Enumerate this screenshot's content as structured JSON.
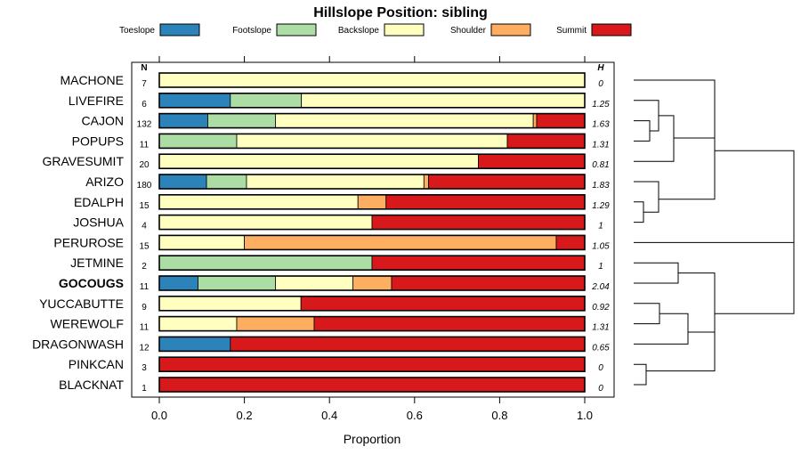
{
  "chart_data": {
    "type": "bar",
    "orientation": "horizontal",
    "stacked": true,
    "title": "Hillslope Position: sibling",
    "xlabel": "Proportion",
    "xlim": [
      0,
      1
    ],
    "x_ticks": [
      "0.0",
      "0.2",
      "0.4",
      "0.6",
      "0.8",
      "1.0"
    ],
    "legend_position": "top",
    "n_header": "N",
    "h_header": "H",
    "categories": [
      "MACHONE",
      "LIVEFIRE",
      "CAJON",
      "POPUPS",
      "GRAVESUMIT",
      "ARIZO",
      "EDALPH",
      "JOSHUA",
      "PERUROSE",
      "JETMINE",
      "GOCOUGS",
      "YUCCABUTTE",
      "WEREWOLF",
      "DRAGONWASH",
      "PINKCAN",
      "BLACKNAT"
    ],
    "bold_category": "GOCOUGS",
    "n": [
      "7",
      "6",
      "132",
      "11",
      "20",
      "180",
      "15",
      "4",
      "15",
      "2",
      "11",
      "9",
      "11",
      "12",
      "3",
      "1"
    ],
    "h": [
      "0",
      "1.25",
      "1.63",
      "1.31",
      "0.81",
      "1.83",
      "1.29",
      "1",
      "1.05",
      "1",
      "2.04",
      "0.92",
      "1.31",
      "0.65",
      "0",
      "0"
    ],
    "series": [
      {
        "name": "Toeslope",
        "color": "#2b83ba",
        "values": [
          0,
          0.167,
          0.114,
          0,
          0,
          0.111,
          0,
          0,
          0,
          0,
          0.091,
          0,
          0,
          0.167,
          0,
          0
        ]
      },
      {
        "name": "Footslope",
        "color": "#abdda4",
        "values": [
          0,
          0.167,
          0.159,
          0.182,
          0,
          0.094,
          0,
          0,
          0,
          0.5,
          0.182,
          0,
          0,
          0,
          0,
          0
        ]
      },
      {
        "name": "Backslope",
        "color": "#ffffbf",
        "values": [
          1.0,
          0.666,
          0.606,
          0.636,
          0.75,
          0.417,
          0.467,
          0.5,
          0.2,
          0,
          0.182,
          0.333,
          0.182,
          0,
          0,
          0
        ]
      },
      {
        "name": "Shoulder",
        "color": "#fdae61",
        "values": [
          0,
          0,
          0.008,
          0,
          0,
          0.011,
          0.066,
          0,
          0.733,
          0,
          0.091,
          0,
          0.182,
          0,
          0,
          0
        ]
      },
      {
        "name": "Summit",
        "color": "#d7191c",
        "values": [
          0,
          0,
          0.113,
          0.182,
          0.25,
          0.367,
          0.467,
          0.5,
          0.067,
          0.5,
          0.454,
          0.667,
          0.636,
          0.833,
          1.0,
          1.0
        ]
      }
    ],
    "dendrogram": "right"
  }
}
